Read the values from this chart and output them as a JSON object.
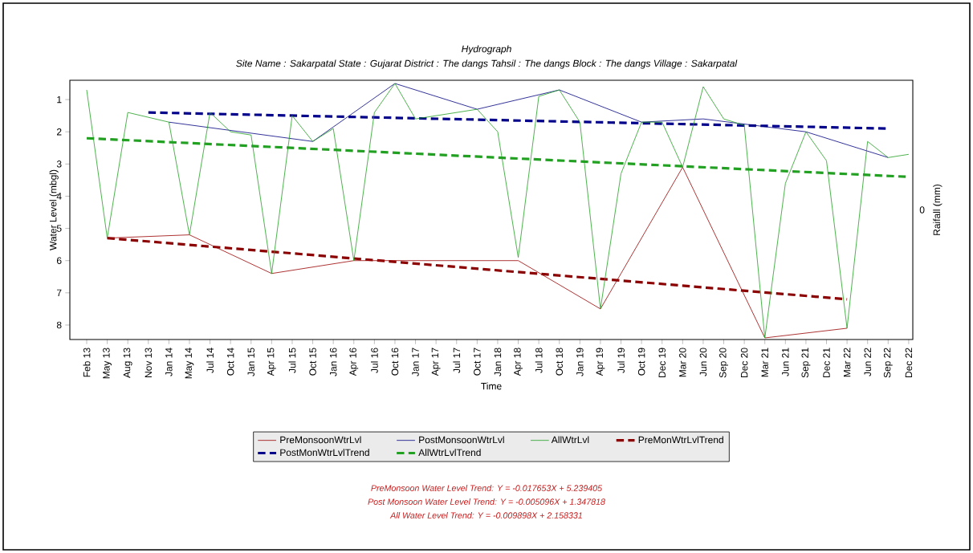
{
  "chart_data": {
    "type": "line",
    "title": "Hydrograph",
    "subtitle": "Site Name : Sakarpatal  State : Gujarat District : The dangs  Tahsil : The dangs  Block : The dangs Village : Sakarpatal",
    "xlabel": "Time",
    "ylabel": "Water Level (mbgl)",
    "y2label": "Raifall (mm)",
    "ylim": [
      8.45,
      0.4
    ],
    "yticks": [
      1,
      2,
      3,
      4,
      5,
      6,
      7,
      8
    ],
    "categories": [
      "Feb 13",
      "May 13",
      "Aug 13",
      "Nov 13",
      "Jan 14",
      "May 14",
      "Jul 14",
      "Oct 14",
      "Jan 15",
      "Apr 15",
      "Jul 15",
      "Oct 15",
      "Jan 16",
      "Apr 16",
      "Jul 16",
      "Oct 16",
      "Jan 17",
      "Apr 17",
      "Jul 17",
      "Oct 17",
      "Jan 18",
      "Apr 18",
      "Jul 18",
      "Oct 18",
      "Jan 19",
      "Apr 19",
      "Jul 19",
      "Oct 19",
      "Dec 19",
      "Mar 20",
      "Jun 20",
      "Sep 20",
      "Dec 20",
      "Mar 21",
      "Jun 21",
      "Sep 21",
      "Dec 21",
      "Mar 22",
      "Jun 22",
      "Sep 22",
      "Dec 22"
    ],
    "legend": "bottom",
    "series": [
      {
        "name": "PreMonsoonWtrLvl",
        "color": "#990000",
        "line_style": "solid",
        "values": [
          null,
          5.3,
          null,
          null,
          null,
          5.2,
          null,
          null,
          null,
          6.4,
          null,
          null,
          null,
          6.0,
          null,
          null,
          null,
          null,
          null,
          6.0,
          null,
          6.0,
          null,
          null,
          null,
          7.5,
          null,
          null,
          null,
          3.1,
          null,
          null,
          null,
          8.4,
          null,
          null,
          null,
          8.1,
          null,
          null,
          null
        ]
      },
      {
        "name": "PostMonsoonWtrLvl",
        "color": "#000080",
        "line_style": "solid",
        "values": [
          null,
          null,
          null,
          null,
          1.7,
          null,
          null,
          null,
          null,
          null,
          null,
          2.3,
          null,
          null,
          null,
          0.5,
          null,
          null,
          null,
          1.3,
          null,
          null,
          null,
          0.7,
          null,
          null,
          null,
          1.7,
          null,
          null,
          1.6,
          null,
          null,
          null,
          null,
          2.0,
          null,
          null,
          null,
          2.8,
          null
        ]
      },
      {
        "name": "AllWtrLvl",
        "color": "#22a022",
        "line_style": "solid",
        "values": [
          0.7,
          5.3,
          1.4,
          null,
          1.7,
          5.2,
          1.4,
          2.0,
          2.1,
          6.4,
          1.5,
          2.3,
          1.9,
          6.0,
          1.4,
          0.5,
          1.6,
          null,
          null,
          1.3,
          2.0,
          5.9,
          0.9,
          0.7,
          1.7,
          7.5,
          3.3,
          1.7,
          1.7,
          3.1,
          0.6,
          1.6,
          1.8,
          8.4,
          3.6,
          2.0,
          2.9,
          8.1,
          2.3,
          2.8,
          2.7
        ]
      },
      {
        "name": "PreMonWtrLvlTrend",
        "color": "#8b0000",
        "line_style": "dashed",
        "values": [
          null,
          5.3,
          null,
          null,
          null,
          null,
          null,
          null,
          null,
          null,
          null,
          null,
          null,
          null,
          null,
          null,
          null,
          null,
          null,
          null,
          null,
          null,
          null,
          null,
          null,
          null,
          null,
          null,
          null,
          null,
          null,
          null,
          null,
          null,
          null,
          null,
          null,
          7.2,
          null,
          null,
          null
        ]
      },
      {
        "name": "PostMonWtrLvlTrend",
        "color": "#00008b",
        "line_style": "dashed",
        "values": [
          null,
          null,
          null,
          1.4,
          null,
          null,
          null,
          null,
          null,
          null,
          null,
          null,
          null,
          null,
          null,
          null,
          null,
          null,
          null,
          null,
          null,
          null,
          null,
          null,
          null,
          null,
          null,
          null,
          null,
          null,
          null,
          null,
          null,
          null,
          null,
          null,
          null,
          null,
          null,
          1.9,
          null
        ]
      },
      {
        "name": "AllWtrLvlTrend",
        "color": "#22a022",
        "line_style": "dashed",
        "values": [
          2.2,
          null,
          null,
          null,
          null,
          null,
          null,
          null,
          null,
          null,
          null,
          null,
          null,
          null,
          null,
          null,
          null,
          null,
          null,
          null,
          null,
          null,
          null,
          null,
          null,
          null,
          null,
          null,
          null,
          null,
          null,
          null,
          null,
          null,
          null,
          null,
          null,
          null,
          null,
          null,
          3.4
        ]
      }
    ],
    "annotations": [
      "0",
      "PreMonsoon Water Level Trend: Y = -0.017653X + 5.239405",
      "Post Monsoon Water Level Trend: Y = -0.005096X + 1.347818",
      "All Water Level Trend: Y = -0.009898X + 2.158331"
    ]
  }
}
